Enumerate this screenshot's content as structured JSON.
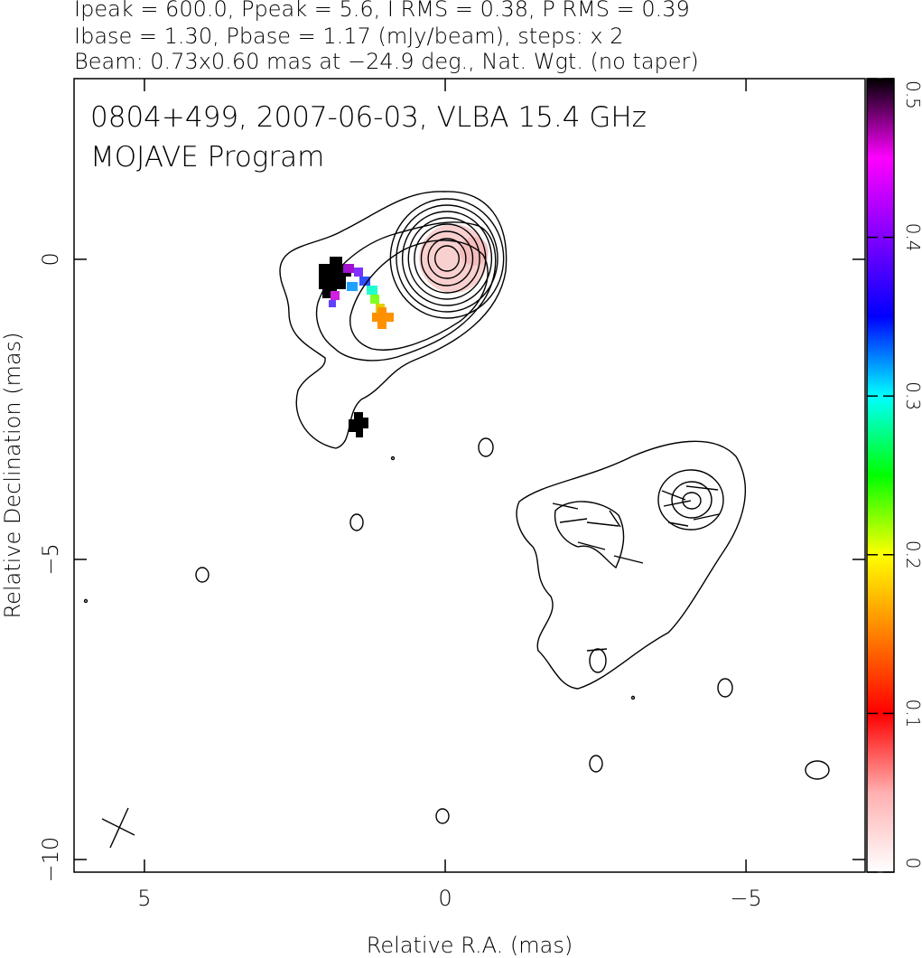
{
  "header": {
    "lines": [
      "Ipeak = 600.0, Ppeak = 5.6, I RMS = 0.38, P RMS = 0.39",
      "Ibase = 1.30, Pbase = 1.17 (mJy/beam), steps: x 2",
      "Beam: 0.73x0.60 mas at −24.9 deg., Nat. Wgt. (no taper)"
    ]
  },
  "chart_data": {
    "type": "contour",
    "title": "0804+499, 2007-06-03, VLBA 15.4 GHz",
    "subtitle": "MOJAVE Program",
    "xlabel": "Relative R.A. (mas)",
    "ylabel": "Relative Declination (mas)",
    "xlim": [
      6.17,
      -6.98
    ],
    "ylim": [
      -10.21,
      3.01
    ],
    "xticks": [
      5,
      0,
      {
        "value": -5,
        "label": "−5"
      }
    ],
    "yticks": [
      0,
      {
        "value": -5,
        "label": "−5"
      },
      {
        "value": -10,
        "label": "−10"
      }
    ],
    "colorbar": {
      "lim": [
        0,
        0.5
      ],
      "ticks": [
        0,
        0.1,
        0.2,
        0.3,
        0.4,
        0.5
      ],
      "colors": [
        "#ffffff",
        "#ffb0b0",
        "#ff0000",
        "#ff8000",
        "#ffff00",
        "#00ff00",
        "#00ffff",
        "#0000ff",
        "#8000ff",
        "#ff00ff",
        "#000000"
      ]
    }
  }
}
